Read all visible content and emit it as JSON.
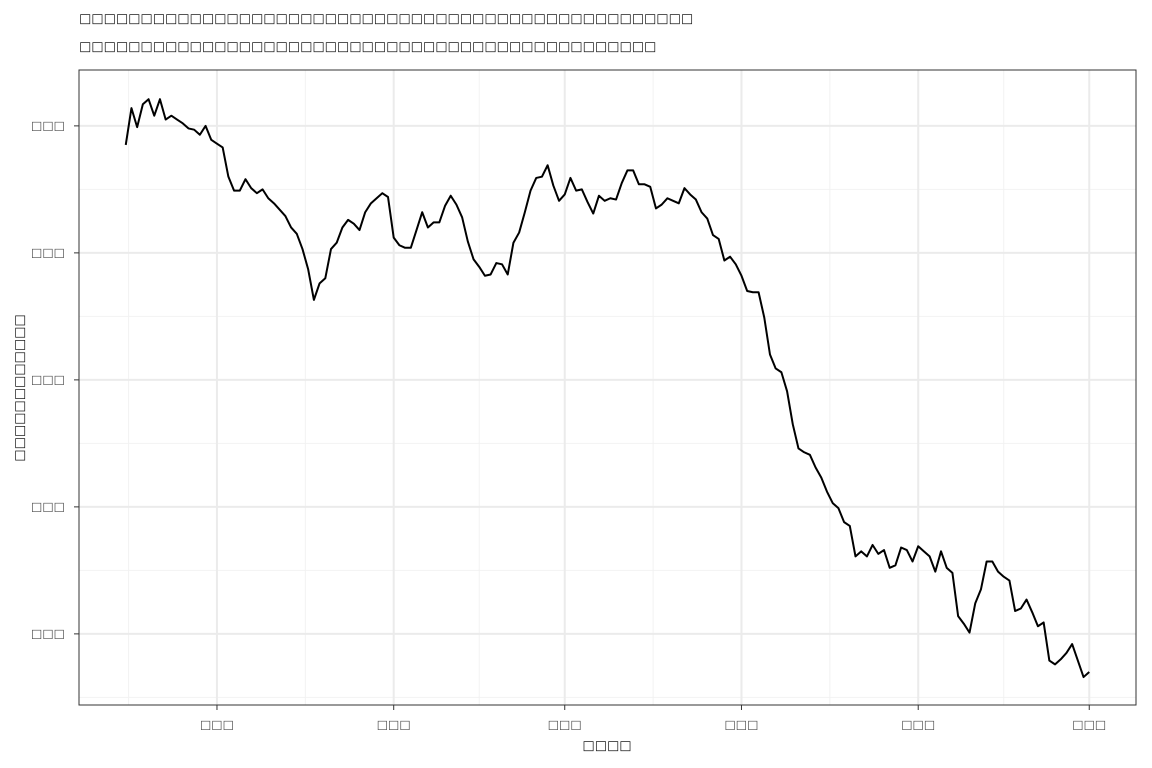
{
  "chart_data": {
    "type": "line",
    "title": "□□□□□□□□□□□□□□□□□□□□□□□□□□□□□□□□□□□□□□□□□□□□□□□□□□",
    "subtitle": "□□□□□□□□□□□□□□□□□□□□□□□□□□□□□□□□□□□□□□□□□□□□□□□",
    "x_label": "□□□□",
    "y_label": "□□□□□□□□□□□□",
    "x": [
      0,
      1,
      2,
      3,
      4,
      5,
      6,
      7,
      8,
      9,
      10,
      11,
      12,
      13,
      14,
      15,
      16,
      17,
      18,
      19,
      20,
      21,
      22,
      23,
      24,
      25,
      26,
      27,
      28,
      29,
      30,
      31,
      32,
      33,
      34,
      35,
      36,
      37,
      38,
      39,
      40,
      41,
      42,
      43,
      44,
      45,
      46,
      47,
      48,
      49,
      50,
      51,
      52,
      53,
      54,
      55,
      56,
      57,
      58,
      59,
      60,
      61,
      62,
      63,
      64,
      65,
      66,
      67,
      68,
      69,
      70,
      71,
      72,
      73,
      74,
      75,
      76,
      77,
      78,
      79,
      80,
      81,
      82,
      83,
      84,
      85,
      86,
      87,
      88,
      89,
      90,
      91,
      92,
      93,
      94,
      95,
      96,
      97,
      98,
      99,
      100,
      101,
      102,
      103,
      104,
      105,
      106,
      107,
      108,
      109,
      110,
      111,
      112,
      113,
      114,
      115,
      116,
      117,
      118,
      119,
      120,
      121,
      122,
      123,
      124,
      125,
      126,
      127,
      128,
      129,
      130,
      131,
      132,
      133,
      134,
      135,
      136,
      137,
      138,
      139,
      140,
      141,
      142,
      143,
      144,
      145,
      146,
      147,
      148,
      149,
      150,
      151,
      152,
      153,
      154,
      155,
      156,
      157,
      158,
      159,
      160,
      161,
      162,
      163,
      164,
      165,
      166,
      167,
      168,
      169
    ],
    "series": [
      {
        "color": "#000000",
        "values": [
          4.85,
          5.14,
          4.99,
          5.17,
          5.21,
          5.08,
          5.21,
          5.05,
          5.08,
          5.05,
          5.02,
          4.98,
          4.97,
          4.93,
          5.0,
          4.89,
          4.86,
          4.83,
          4.6,
          4.49,
          4.49,
          4.58,
          4.51,
          4.47,
          4.5,
          4.43,
          4.39,
          4.34,
          4.29,
          4.2,
          4.15,
          4.03,
          3.87,
          3.63,
          3.76,
          3.8,
          4.03,
          4.08,
          4.2,
          4.26,
          4.23,
          4.18,
          4.32,
          4.39,
          4.43,
          4.47,
          4.44,
          4.12,
          4.06,
          4.04,
          4.04,
          4.18,
          4.32,
          4.2,
          4.24,
          4.24,
          4.37,
          4.45,
          4.38,
          4.28,
          4.09,
          3.95,
          3.89,
          3.82,
          3.83,
          3.92,
          3.91,
          3.83,
          4.08,
          4.16,
          4.32,
          4.49,
          4.59,
          4.6,
          4.69,
          4.53,
          4.41,
          4.46,
          4.59,
          4.49,
          4.5,
          4.4,
          4.31,
          4.45,
          4.41,
          4.43,
          4.42,
          4.55,
          4.65,
          4.65,
          4.54,
          4.54,
          4.52,
          4.35,
          4.38,
          4.43,
          4.41,
          4.39,
          4.51,
          4.46,
          4.42,
          4.32,
          4.27,
          4.14,
          4.11,
          3.94,
          3.97,
          3.91,
          3.82,
          3.7,
          3.69,
          3.69,
          3.49,
          3.2,
          3.09,
          3.06,
          2.91,
          2.65,
          2.46,
          2.43,
          2.41,
          2.31,
          2.23,
          2.12,
          2.03,
          1.99,
          1.88,
          1.85,
          1.61,
          1.65,
          1.61,
          1.7,
          1.63,
          1.66,
          1.52,
          1.54,
          1.68,
          1.66,
          1.57,
          1.69,
          1.65,
          1.61,
          1.49,
          1.65,
          1.52,
          1.48,
          1.14,
          1.08,
          1.01,
          1.24,
          1.35,
          1.57,
          1.57,
          1.49,
          1.45,
          1.42,
          1.18,
          1.2,
          1.27,
          1.17,
          1.06,
          1.09,
          0.79,
          0.76,
          0.8,
          0.85,
          0.92,
          0.79,
          0.66,
          0.7
        ]
      }
    ],
    "xlim": [
      -8.2,
      177.2
    ],
    "ylim": [
      0.44,
      5.44
    ],
    "xticks": [
      {
        "value": 16,
        "label": "□□□"
      },
      {
        "value": 47,
        "label": "□□□"
      },
      {
        "value": 77,
        "label": "□□□"
      },
      {
        "value": 108,
        "label": "□□□"
      },
      {
        "value": 139,
        "label": "□□□"
      },
      {
        "value": 169,
        "label": "□□□"
      }
    ],
    "yticks": [
      {
        "value": 1,
        "label": "□□□"
      },
      {
        "value": 2,
        "label": "□□□"
      },
      {
        "value": 3,
        "label": "□□□"
      },
      {
        "value": 4,
        "label": "□□□"
      },
      {
        "value": 5,
        "label": "□□□"
      }
    ],
    "grid": true
  }
}
